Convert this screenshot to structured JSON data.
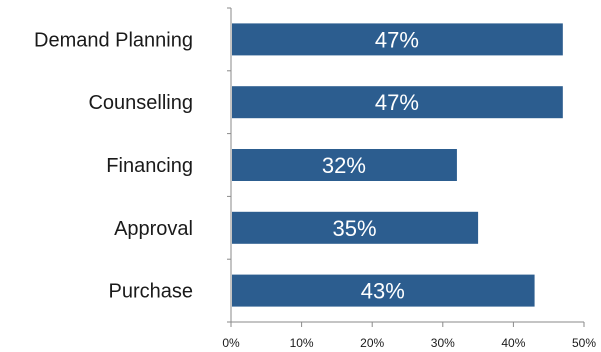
{
  "chart_data": {
    "type": "bar",
    "orientation": "horizontal",
    "title": "",
    "xlabel": "",
    "ylabel": "",
    "categories": [
      "Demand Planning",
      "Counselling",
      "Financing",
      "Approval",
      "Purchase"
    ],
    "values": [
      47,
      47,
      32,
      35,
      43
    ],
    "data_labels": [
      "47%",
      "47%",
      "32%",
      "35%",
      "43%"
    ],
    "xlim": [
      0,
      50
    ],
    "x_ticks": [
      0,
      10,
      20,
      30,
      40,
      50
    ],
    "x_tick_labels": [
      "0%",
      "10%",
      "20%",
      "30%",
      "40%",
      "50%"
    ],
    "grid": false,
    "legend": "none",
    "colors": {
      "bar": "#2c5d8f",
      "bar_label": "#ffffff",
      "axis": "#8a8a8a",
      "text": "#1a1a1a"
    }
  }
}
